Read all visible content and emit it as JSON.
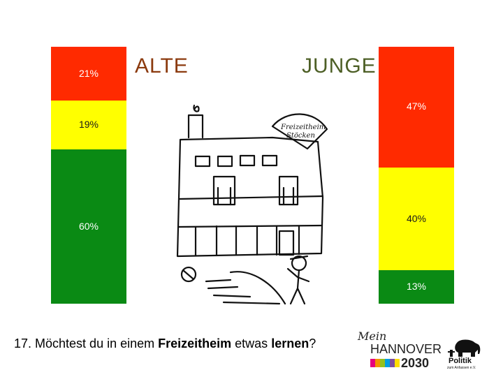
{
  "chart_data": {
    "type": "bar",
    "stacked": true,
    "normalized": true,
    "categories": [
      "ALTE",
      "JUNGE"
    ],
    "series": [
      {
        "color": "#ff2a00",
        "values": [
          21,
          47
        ],
        "labels": [
          "21%",
          "47%"
        ]
      },
      {
        "color": "#ffff00",
        "values": [
          19,
          40
        ],
        "labels": [
          "19%",
          "40%"
        ]
      },
      {
        "color": "#0a8a14",
        "values": [
          60,
          13
        ],
        "labels": [
          "60%",
          "13%"
        ]
      }
    ],
    "ylim": [
      0,
      100
    ]
  },
  "titles": {
    "alte": "ALTE",
    "junge": "JUNGE",
    "alte_color": "#8b3a0e",
    "junge_color": "#4d5f26"
  },
  "question": {
    "prefix": "17. Möchtest du in einem ",
    "bold1": "Freizeitheim",
    "middle": " etwas ",
    "bold2": "lernen",
    "suffix": "?"
  },
  "drawing": {
    "sign_line1": "Freizeitheim",
    "sign_line2": "Stöcken"
  },
  "logos": {
    "mein": "Mein",
    "hannover": "HANNOVER",
    "year": "2030",
    "stripe_colors": [
      "#e6007e",
      "#f39200",
      "#95c11f",
      "#009fe3",
      "#7d4e9f",
      "#ffdd00"
    ],
    "politik": "Politik",
    "politik_sub": "zum Anfassen e.V."
  }
}
